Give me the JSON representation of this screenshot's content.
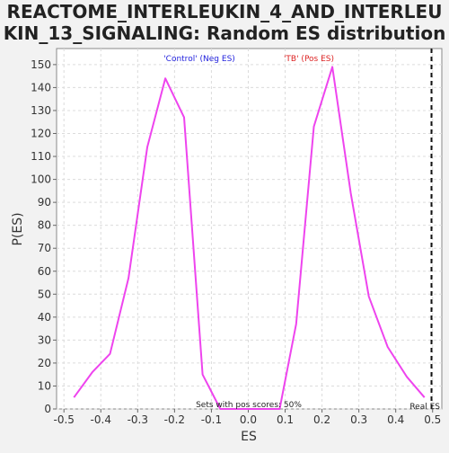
{
  "chart_data": {
    "type": "line",
    "title": "REACTOME_INTERLEUKIN_4_AND_INTERLEUKIN_13_SIGNALING: Random ES distribution",
    "title_lines": [
      "REACTOME_INTERLEUKIN_4_AND_INTERLEU",
      "KIN_13_SIGNALING: Random ES distribution"
    ],
    "xlabel": "ES",
    "ylabel": "P(ES)",
    "xlim": [
      -0.52,
      0.525
    ],
    "ylim": [
      0,
      157
    ],
    "x_ticks": [
      -0.5,
      -0.4,
      -0.3,
      -0.2,
      -0.1,
      0.0,
      0.1,
      0.2,
      0.3,
      0.4,
      0.5
    ],
    "x_tick_labels": [
      "-0.5",
      "-0.4",
      "-0.3",
      "-0.2",
      "-0.1",
      "0.0",
      "0.1",
      "0.2",
      "0.3",
      "0.4",
      "0.5"
    ],
    "y_ticks": [
      0,
      10,
      20,
      30,
      40,
      50,
      60,
      70,
      80,
      90,
      100,
      110,
      120,
      130,
      140,
      150
    ],
    "y_tick_labels": [
      "0",
      "10",
      "20",
      "30",
      "40",
      "50",
      "60",
      "70",
      "80",
      "90",
      "100",
      "110",
      "120",
      "130",
      "140",
      "150"
    ],
    "grid": true,
    "series": [
      {
        "color": "#ee44ee",
        "x": [
          -0.473,
          -0.423,
          -0.375,
          -0.325,
          -0.274,
          -0.225,
          -0.174,
          -0.124,
          -0.076,
          0.085,
          0.13,
          0.178,
          0.228,
          0.278,
          0.327,
          0.378,
          0.43,
          0.478
        ],
        "y": [
          5,
          16,
          24,
          57,
          114,
          144,
          127,
          15,
          0,
          0,
          37,
          123,
          149,
          94,
          49,
          27,
          14,
          5
        ]
      }
    ],
    "annotations": {
      "neg_label": "'Control' (Neg ES)",
      "neg_color": "#2222dd",
      "pos_label": "'TB' (Pos ES)",
      "pos_color": "#dd2222",
      "center_text": "Sets with pos scores: 50%",
      "real_es_label": "Real ES",
      "real_es_value": 0.497
    }
  }
}
